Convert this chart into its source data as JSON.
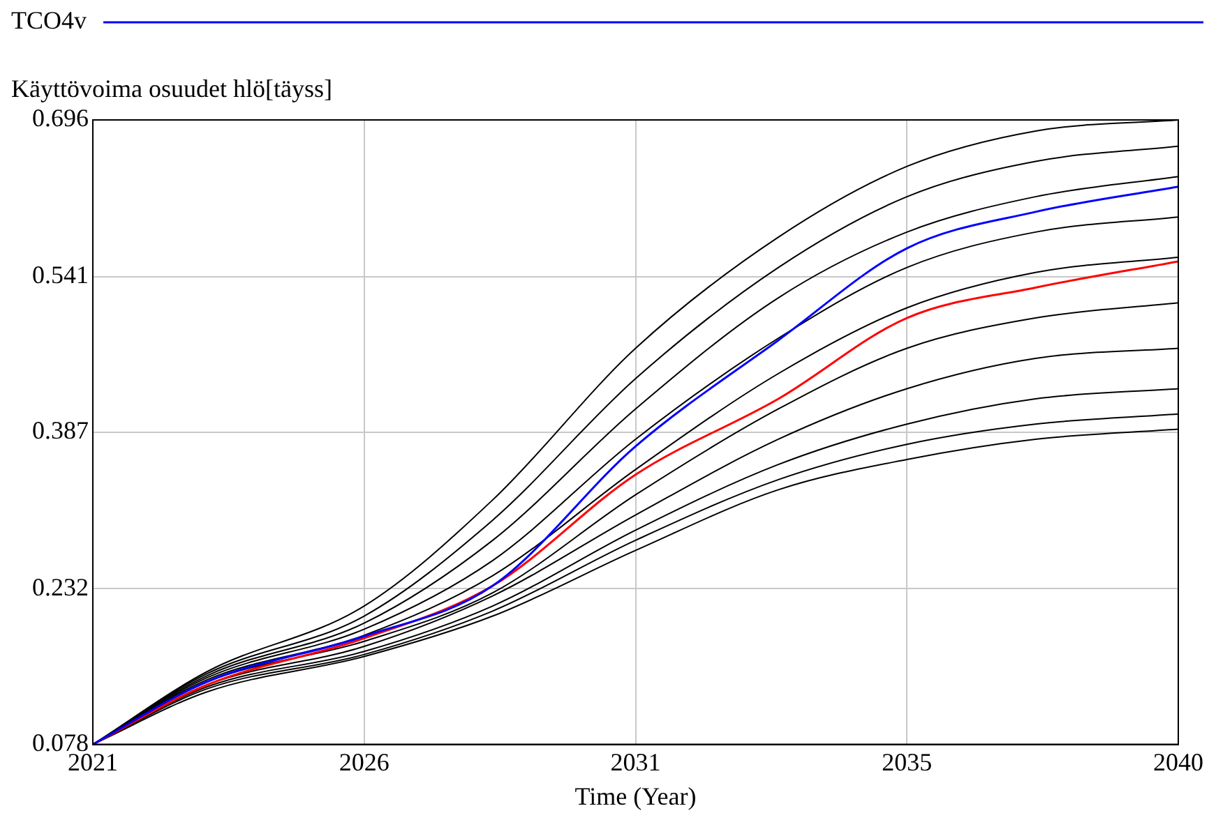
{
  "chart_data": {
    "type": "line",
    "xlabel": "Time (Year)",
    "ylabel": "Käyttövoima osuudet hlö[täyss]",
    "x": [
      2021,
      2023,
      2025.75,
      2028,
      2030.5,
      2033,
      2035.25,
      2037.5,
      2040
    ],
    "xlim": [
      2021,
      2040
    ],
    "xticks": [
      2021,
      {
        "value": 2025.75,
        "label": "2026"
      },
      {
        "value": 2030.5,
        "label": "2031"
      },
      {
        "value": 2035.25,
        "label": "2035"
      },
      2040
    ],
    "ylim": [
      0.078,
      0.696
    ],
    "yticks": [
      0.078,
      0.232,
      0.387,
      0.541,
      0.696
    ],
    "grid": true,
    "legend": "top left",
    "marker": "none",
    "line_style": "solid",
    "series": [
      {
        "color": "#000000",
        "values": [
          0.078,
          0.15,
          0.215,
          0.32,
          0.47,
          0.58,
          0.65,
          0.685,
          0.696
        ]
      },
      {
        "color": "#000000",
        "values": [
          0.078,
          0.148,
          0.205,
          0.3,
          0.44,
          0.55,
          0.62,
          0.655,
          0.67
        ]
      },
      {
        "color": "#000000",
        "values": [
          0.078,
          0.146,
          0.198,
          0.28,
          0.41,
          0.52,
          0.585,
          0.62,
          0.64
        ]
      },
      {
        "color": "#000000",
        "values": [
          0.078,
          0.144,
          0.192,
          0.26,
          0.38,
          0.48,
          0.55,
          0.585,
          0.6
        ]
      },
      {
        "color": "#000000",
        "values": [
          0.078,
          0.142,
          0.186,
          0.245,
          0.35,
          0.445,
          0.51,
          0.545,
          0.56
        ]
      },
      {
        "color": "#000000",
        "values": [
          0.078,
          0.14,
          0.18,
          0.228,
          0.325,
          0.41,
          0.47,
          0.5,
          0.515
        ]
      },
      {
        "color": "#000000",
        "values": [
          0.078,
          0.137,
          0.175,
          0.225,
          0.305,
          0.38,
          0.43,
          0.46,
          0.47
        ]
      },
      {
        "color": "#000000",
        "values": [
          0.078,
          0.135,
          0.17,
          0.215,
          0.29,
          0.355,
          0.395,
          0.42,
          0.43
        ]
      },
      {
        "color": "#000000",
        "values": [
          0.078,
          0.133,
          0.167,
          0.21,
          0.28,
          0.34,
          0.375,
          0.395,
          0.405
        ]
      },
      {
        "color": "#000000",
        "values": [
          0.078,
          0.13,
          0.165,
          0.205,
          0.27,
          0.33,
          0.36,
          0.38,
          0.39
        ]
      },
      {
        "color": "#ff0000",
        "values": [
          0.078,
          0.137,
          0.183,
          0.235,
          0.345,
          0.42,
          0.5,
          0.53,
          0.556
        ]
      },
      {
        "name": "TCO4v",
        "color": "#0000ff",
        "values": [
          0.078,
          0.14,
          0.185,
          0.235,
          0.373,
          0.478,
          0.569,
          0.605,
          0.63
        ]
      }
    ]
  }
}
